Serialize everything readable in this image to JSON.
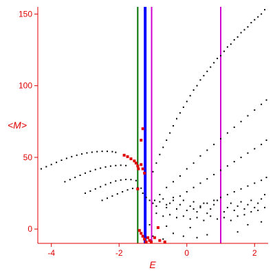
{
  "chart_data": {
    "type": "scatter",
    "title": "",
    "xlabel": "E",
    "ylabel": "<M>",
    "xlim": [
      -4.4,
      2.4
    ],
    "ylim": [
      -10,
      155
    ],
    "x_ticks": [
      {
        "value": -4,
        "label": "-4"
      },
      {
        "value": -2,
        "label": "-2"
      },
      {
        "value": 0,
        "label": "0"
      },
      {
        "value": 2,
        "label": "2"
      }
    ],
    "y_ticks": [
      {
        "value": 0,
        "label": "0"
      },
      {
        "value": 50,
        "label": "50"
      },
      {
        "value": 100,
        "label": "100"
      },
      {
        "value": 150,
        "label": "150"
      }
    ],
    "colors": {
      "axis": "#e00000",
      "black_points": "#000000",
      "red_points": "#e00000",
      "green_line": "#007000",
      "blue_line": "#0000ff",
      "magenta_line": "#d000d0"
    },
    "vertical_lines": [
      {
        "x": -1.45,
        "color": "#007000",
        "width": 2
      },
      {
        "x": -1.23,
        "color": "#0000ff",
        "width": 4
      },
      {
        "x": -1.04,
        "color": "#d000d0",
        "width": 2
      },
      {
        "x": 1.0,
        "color": "#d000d0",
        "width": 2
      }
    ],
    "series": [
      {
        "color": "#000000",
        "points": [
          [
            -4.3,
            42
          ],
          [
            -4.15,
            43.5
          ],
          [
            -4.0,
            45
          ],
          [
            -3.85,
            46.5
          ],
          [
            -3.7,
            48
          ],
          [
            -3.55,
            49.3
          ],
          [
            -3.4,
            50.5
          ],
          [
            -3.25,
            51.5
          ],
          [
            -3.1,
            52.4
          ],
          [
            -2.95,
            53.1
          ],
          [
            -2.8,
            53.6
          ],
          [
            -2.65,
            54.0
          ],
          [
            -2.5,
            54.2
          ],
          [
            -2.35,
            54.2
          ],
          [
            -2.2,
            54.0
          ],
          [
            -2.1,
            53.5
          ],
          [
            -3.6,
            33
          ],
          [
            -3.45,
            34.5
          ],
          [
            -3.3,
            36
          ],
          [
            -3.15,
            37.5
          ],
          [
            -3.0,
            39
          ],
          [
            -2.85,
            40.3
          ],
          [
            -2.7,
            41.5
          ],
          [
            -2.55,
            42.5
          ],
          [
            -2.4,
            43.3
          ],
          [
            -2.25,
            43.9
          ],
          [
            -2.1,
            44.3
          ],
          [
            -1.95,
            44.5
          ],
          [
            -1.8,
            44.3
          ],
          [
            -3.0,
            25
          ],
          [
            -2.85,
            26.5
          ],
          [
            -2.7,
            28
          ],
          [
            -2.55,
            29.5
          ],
          [
            -2.4,
            31
          ],
          [
            -2.25,
            32.3
          ],
          [
            -2.1,
            33.5
          ],
          [
            -1.95,
            34.2
          ],
          [
            -1.8,
            34.6
          ],
          [
            -1.65,
            34.5
          ],
          [
            -1.5,
            33.8
          ],
          [
            -2.5,
            20
          ],
          [
            -2.35,
            21.5
          ],
          [
            -2.2,
            23
          ],
          [
            -2.05,
            24.5
          ],
          [
            -1.9,
            26
          ],
          [
            -1.75,
            27.3
          ],
          [
            -1.6,
            28.3
          ],
          [
            -1.45,
            28.8
          ],
          [
            -1.35,
            28.5
          ],
          [
            -1.0,
            40
          ],
          [
            -0.9,
            46
          ],
          [
            -0.8,
            52
          ],
          [
            -0.7,
            57
          ],
          [
            -0.6,
            62
          ],
          [
            -0.5,
            67
          ],
          [
            -0.4,
            72
          ],
          [
            -0.3,
            77
          ],
          [
            -0.2,
            81
          ],
          [
            -0.1,
            85
          ],
          [
            0.0,
            89
          ],
          [
            0.1,
            93
          ],
          [
            0.2,
            97
          ],
          [
            0.3,
            100
          ],
          [
            0.4,
            104
          ],
          [
            0.5,
            107
          ],
          [
            0.6,
            110
          ],
          [
            0.7,
            113
          ],
          [
            0.8,
            116
          ],
          [
            0.9,
            119
          ],
          [
            1.0,
            121
          ],
          [
            1.1,
            124
          ],
          [
            1.2,
            127
          ],
          [
            1.3,
            129
          ],
          [
            1.4,
            132
          ],
          [
            1.5,
            134
          ],
          [
            1.6,
            137
          ],
          [
            1.7,
            139
          ],
          [
            1.8,
            141
          ],
          [
            1.9,
            144
          ],
          [
            2.0,
            146
          ],
          [
            2.1,
            148
          ],
          [
            2.2,
            150
          ],
          [
            2.3,
            153
          ],
          [
            -0.95,
            20
          ],
          [
            -0.8,
            24
          ],
          [
            -0.6,
            29
          ],
          [
            -0.4,
            33
          ],
          [
            -0.2,
            37
          ],
          [
            0.0,
            42
          ],
          [
            0.2,
            46
          ],
          [
            0.4,
            51
          ],
          [
            0.6,
            55
          ],
          [
            0.8,
            59
          ],
          [
            1.0,
            63
          ],
          [
            1.2,
            67
          ],
          [
            1.4,
            71
          ],
          [
            1.6,
            75
          ],
          [
            1.8,
            79
          ],
          [
            2.0,
            83
          ],
          [
            2.2,
            87
          ],
          [
            2.35,
            90
          ],
          [
            -0.6,
            17
          ],
          [
            -0.4,
            20
          ],
          [
            -0.2,
            23
          ],
          [
            0.0,
            26
          ],
          [
            0.2,
            29
          ],
          [
            0.4,
            32
          ],
          [
            0.6,
            35
          ],
          [
            0.8,
            38
          ],
          [
            1.0,
            41
          ],
          [
            1.2,
            44
          ],
          [
            1.4,
            47
          ],
          [
            1.6,
            50
          ],
          [
            1.8,
            53
          ],
          [
            2.0,
            56
          ],
          [
            2.2,
            59
          ],
          [
            2.35,
            62
          ],
          [
            0.2,
            14
          ],
          [
            0.4,
            16
          ],
          [
            0.6,
            18
          ],
          [
            0.8,
            20
          ],
          [
            1.0,
            22
          ],
          [
            1.2,
            24
          ],
          [
            1.4,
            26
          ],
          [
            1.6,
            28
          ],
          [
            1.8,
            30
          ],
          [
            2.0,
            32
          ],
          [
            2.2,
            34
          ],
          [
            2.35,
            36
          ],
          [
            -1.3,
            25
          ],
          [
            -1.2,
            22
          ],
          [
            -1.1,
            20
          ],
          [
            -1.0,
            18
          ],
          [
            -0.9,
            16
          ],
          [
            -0.8,
            19
          ],
          [
            -0.7,
            21
          ],
          [
            -0.6,
            15
          ],
          [
            -0.5,
            18
          ],
          [
            -0.4,
            22
          ],
          [
            -0.3,
            14
          ],
          [
            -0.2,
            17
          ],
          [
            -0.1,
            20
          ],
          [
            0.0,
            13
          ],
          [
            0.1,
            16
          ],
          [
            0.2,
            19
          ],
          [
            0.3,
            12
          ],
          [
            0.4,
            15
          ],
          [
            0.5,
            18
          ],
          [
            0.6,
            11
          ],
          [
            0.7,
            14
          ],
          [
            0.8,
            17
          ],
          [
            0.9,
            20
          ],
          [
            1.1,
            12
          ],
          [
            1.2,
            15
          ],
          [
            1.3,
            18
          ],
          [
            1.4,
            13
          ],
          [
            1.5,
            16
          ],
          [
            1.6,
            19
          ],
          [
            1.7,
            14
          ],
          [
            1.8,
            17
          ],
          [
            1.9,
            20
          ],
          [
            2.0,
            15
          ],
          [
            2.1,
            18
          ],
          [
            2.2,
            21
          ],
          [
            2.3,
            24
          ],
          [
            -0.9,
            11
          ],
          [
            -0.7,
            9
          ],
          [
            -0.5,
            10
          ],
          [
            -0.3,
            8
          ],
          [
            -0.1,
            9
          ],
          [
            0.1,
            7
          ],
          [
            0.3,
            8
          ],
          [
            0.5,
            6
          ],
          [
            0.7,
            9
          ],
          [
            0.9,
            7
          ],
          [
            1.1,
            8
          ],
          [
            1.3,
            6
          ],
          [
            1.5,
            9
          ],
          [
            1.7,
            10
          ],
          [
            1.9,
            12
          ],
          [
            2.1,
            13
          ],
          [
            2.3,
            15
          ],
          [
            -1.0,
            -5
          ],
          [
            -0.7,
            -7
          ],
          [
            -0.4,
            -3
          ],
          [
            -0.1,
            -5
          ],
          [
            0.3,
            -6
          ],
          [
            0.6,
            -4
          ],
          [
            -1.1,
            3
          ],
          [
            -0.6,
            2
          ],
          [
            0.1,
            1
          ],
          [
            1.5,
            -2
          ],
          [
            1.8,
            3
          ],
          [
            2.2,
            5
          ]
        ]
      },
      {
        "color": "#e00000",
        "points": [
          [
            -1.85,
            51.5
          ],
          [
            -1.75,
            50.5
          ],
          [
            -1.65,
            49
          ],
          [
            -1.55,
            47.5
          ],
          [
            -1.5,
            46
          ],
          [
            -1.45,
            44
          ],
          [
            -1.43,
            42
          ],
          [
            -1.45,
            28
          ],
          [
            -1.35,
            45
          ],
          [
            -1.3,
            42
          ],
          [
            -1.25,
            39
          ],
          [
            -1.3,
            70
          ],
          [
            -1.35,
            62
          ],
          [
            -1.4,
            -1
          ],
          [
            -1.35,
            -3
          ],
          [
            -1.3,
            -5
          ],
          [
            -1.25,
            -7
          ],
          [
            -1.2,
            -9
          ],
          [
            -1.15,
            -6
          ],
          [
            -1.1,
            -8
          ],
          [
            -1.05,
            -9
          ],
          [
            -0.95,
            -6
          ],
          [
            -0.8,
            -8
          ],
          [
            -0.65,
            -9
          ],
          [
            -0.85,
            1
          ]
        ]
      }
    ]
  }
}
